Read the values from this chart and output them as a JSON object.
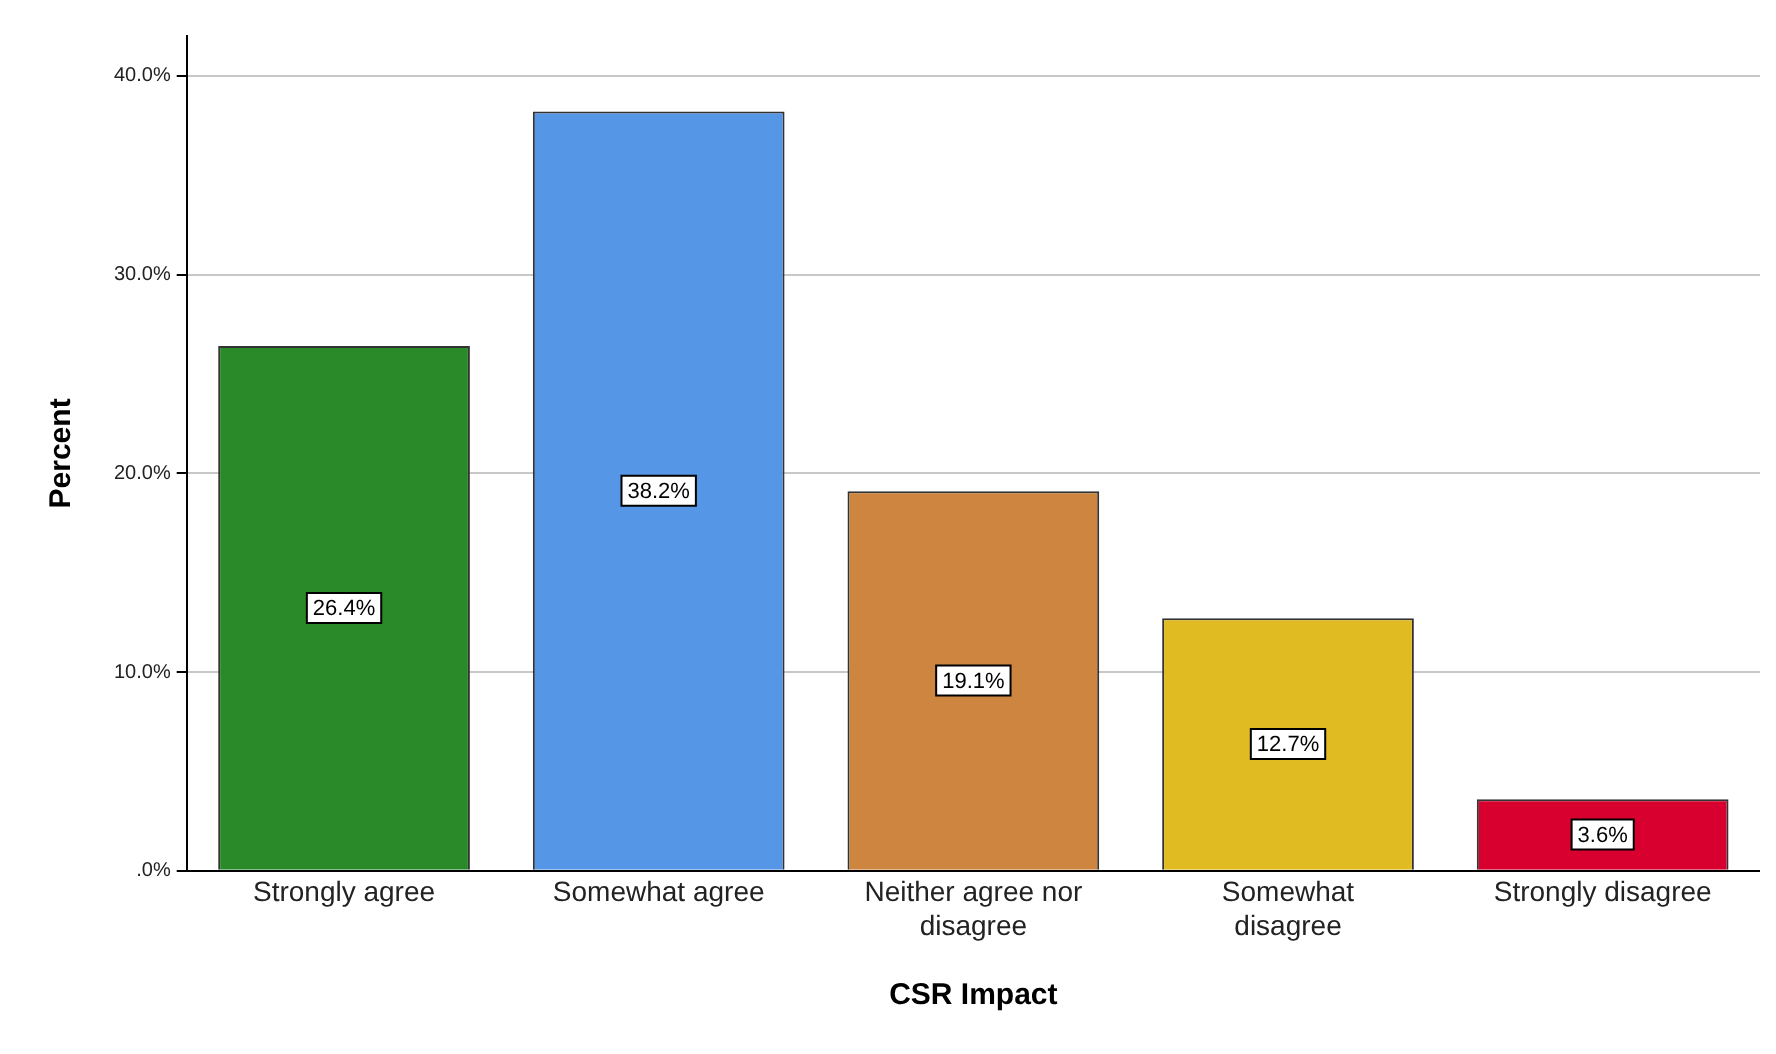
{
  "chart_data": {
    "type": "bar",
    "xlabel": "CSR Impact",
    "ylabel": "Percent",
    "categories": [
      "Strongly agree",
      "Somewhat agree",
      "Neither agree nor disagree",
      "Somewhat disagree",
      "Strongly disagree"
    ],
    "values": [
      26.4,
      38.2,
      19.1,
      12.7,
      3.6
    ],
    "colors": [
      "#2a8a2a",
      "#5596e6",
      "#cd8540",
      "#e0bb22",
      "#d7002e"
    ],
    "value_labels": [
      "26.4%",
      "38.2%",
      "19.1%",
      "12.7%",
      "3.6%"
    ],
    "ylim": [
      0,
      42
    ],
    "yticks": [
      {
        "value": 0,
        "label": ".0%"
      },
      {
        "value": 10,
        "label": "10.0%"
      },
      {
        "value": 20,
        "label": "20.0%"
      },
      {
        "value": 30,
        "label": "30.0%"
      },
      {
        "value": 40,
        "label": "40.0%"
      }
    ],
    "grid": "y",
    "legend": false
  }
}
